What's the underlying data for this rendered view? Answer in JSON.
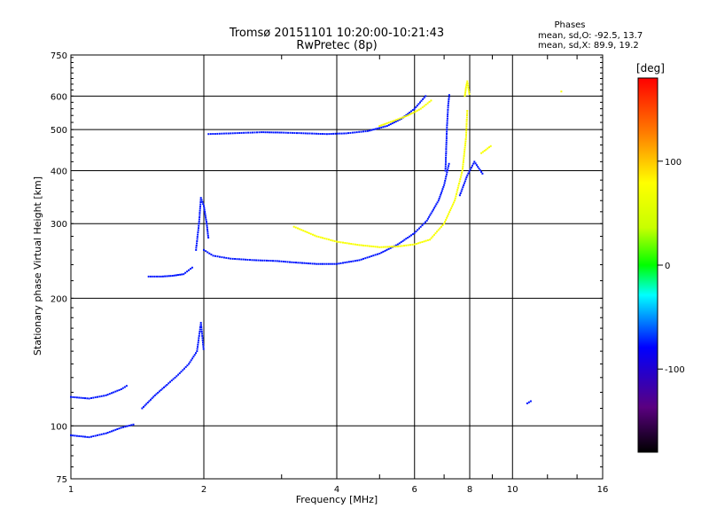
{
  "header": {
    "title_line1": "Tromsø 20151101 10:20:00-10:21:43",
    "title_line2": "RwPretec (8p)"
  },
  "stats": {
    "heading": "Phases",
    "line_o": "mean, sd,O: -92.5, 13.7",
    "line_x": "mean, sd,X:  89.9, 19.2"
  },
  "chart_data": {
    "type": "scatter",
    "title": "Tromsø 20151101 10:20:00-10:21:43",
    "subtitle": "RwPretec (8p)",
    "xlabel": "Frequency [MHz]",
    "ylabel": "Stationary phase Virtual Height [km]",
    "x_scale": "log",
    "y_scale": "log",
    "xlim": [
      1,
      16
    ],
    "ylim": [
      75,
      750
    ],
    "x_ticks": [
      1,
      2,
      4,
      6,
      8,
      10,
      16
    ],
    "x_tick_labels": [
      "1",
      "2",
      "4",
      "6",
      "8",
      "10",
      "16"
    ],
    "y_ticks": [
      75,
      100,
      200,
      300,
      400,
      500,
      600,
      750
    ],
    "y_tick_labels": [
      "75",
      "100",
      "200",
      "300",
      "400",
      "500",
      "600",
      "750"
    ],
    "grid": true,
    "colorbar": {
      "label": "[deg]",
      "range": [
        -180,
        180
      ],
      "ticks": [
        100,
        0,
        -100
      ],
      "tick_labels": [
        "100",
        "0",
        "-100"
      ]
    },
    "series": [
      {
        "mode": "O",
        "color_value": -95,
        "traces": [
          {
            "x": [
              1.0,
              1.1,
              1.2,
              1.3,
              1.35
            ],
            "y": [
              117,
              116,
              118,
              122,
              125
            ]
          },
          {
            "x": [
              1.0,
              1.1,
              1.2,
              1.3,
              1.4
            ],
            "y": [
              95,
              94,
              96,
              99,
              101
            ]
          },
          {
            "x": [
              1.45,
              1.55,
              1.65,
              1.75,
              1.85,
              1.93,
              1.97,
              2.0
            ],
            "y": [
              110,
              118,
              125,
              132,
              140,
              150,
              175,
              150
            ]
          },
          {
            "x": [
              1.5,
              1.6,
              1.7,
              1.8,
              1.9
            ],
            "y": [
              225,
              225,
              226,
              228,
              238
            ]
          },
          {
            "x": [
              1.92,
              1.95,
              1.97,
              2.0,
              2.03,
              2.05
            ],
            "y": [
              260,
              300,
              345,
              330,
              300,
              275
            ]
          },
          {
            "x": [
              2.0,
              2.1,
              2.3,
              2.6,
              2.9,
              3.2,
              3.6,
              4.0,
              4.5,
              5.0,
              5.5,
              6.0,
              6.4,
              6.8,
              7.0,
              7.2
            ],
            "y": [
              260,
              252,
              248,
              246,
              245,
              243,
              241,
              241,
              246,
              255,
              268,
              285,
              305,
              340,
              370,
              420
            ]
          },
          {
            "x": [
              2.05,
              2.3,
              2.7,
              3.0,
              3.4,
              3.8,
              4.2,
              4.7,
              5.2,
              5.6,
              6.0,
              6.4
            ],
            "y": [
              488,
              490,
              493,
              492,
              490,
              488,
              490,
              496,
              510,
              530,
              560,
              605
            ]
          },
          {
            "x": [
              7.05,
              7.1,
              7.15,
              7.2
            ],
            "y": [
              400,
              500,
              570,
              610
            ]
          },
          {
            "x": [
              7.6,
              7.9,
              8.2,
              8.6
            ],
            "y": [
              350,
              390,
              420,
              390
            ]
          },
          {
            "x": [
              10.8,
              11.1
            ],
            "y": [
              113,
              115
            ]
          }
        ]
      },
      {
        "mode": "X",
        "color_value": 92,
        "traces": [
          {
            "x": [
              3.2,
              3.6,
              4.0,
              4.5,
              5.0,
              5.5,
              6.0,
              6.5,
              7.0,
              7.4,
              7.7,
              7.85,
              7.9
            ],
            "y": [
              295,
              280,
              272,
              267,
              264,
              265,
              268,
              275,
              300,
              340,
              400,
              480,
              560
            ]
          },
          {
            "x": [
              5.0,
              5.4,
              5.8,
              6.2,
              6.6
            ],
            "y": [
              510,
              525,
              540,
              560,
              590
            ]
          },
          {
            "x": [
              7.8,
              7.85,
              7.9,
              8.0
            ],
            "y": [
              600,
              630,
              650,
              600
            ]
          },
          {
            "x": [
              8.5,
              9.0
            ],
            "y": [
              440,
              460
            ]
          },
          {
            "x": [
              12.9
            ],
            "y": [
              615
            ]
          }
        ]
      }
    ]
  }
}
